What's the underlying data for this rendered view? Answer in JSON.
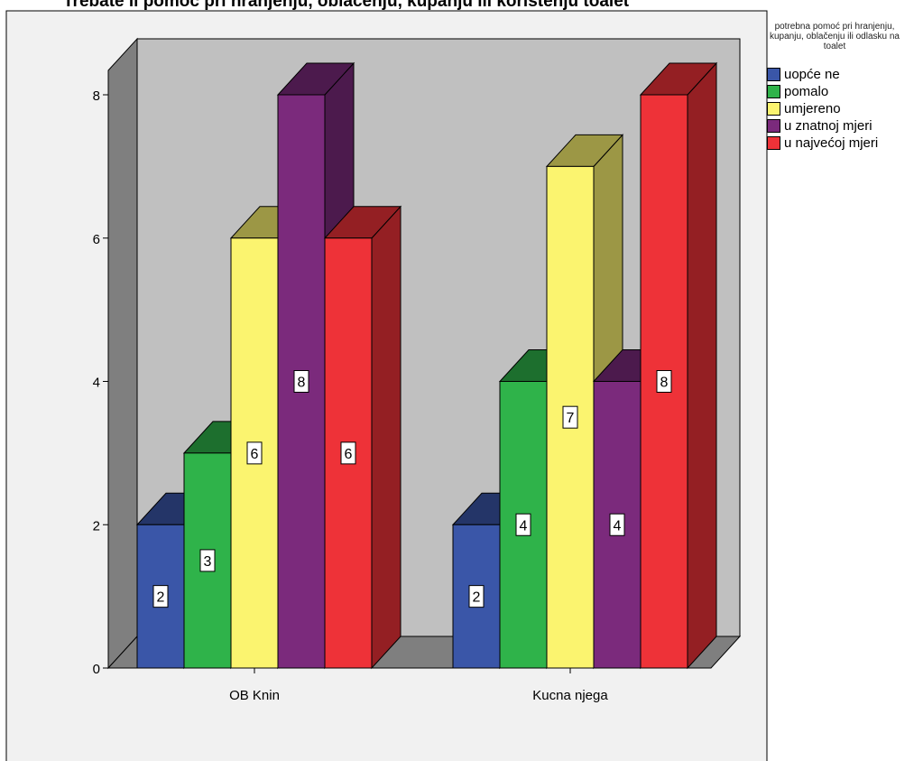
{
  "chart_data": {
    "type": "bar",
    "title": "Trebate li pomoć pri hranjenju, oblačenju, kupanju ili korištenju toalet",
    "xlabel": "",
    "ylabel": "",
    "categories": [
      "OB Knin",
      "Kucna njega"
    ],
    "ylim": [
      0,
      8
    ],
    "yticks": [
      0,
      2,
      4,
      6,
      8
    ],
    "legend_title": "potrebna pomoć pri hranjenju, kupanju, oblačenju ili odlasku na toalet",
    "legend_position": "right",
    "series": [
      {
        "name": "uopće ne",
        "color": "#3a56a8",
        "values": [
          2,
          2
        ]
      },
      {
        "name": "pomalo",
        "color": "#2fb34a",
        "values": [
          3,
          4
        ]
      },
      {
        "name": "umjereno",
        "color": "#fbf46f",
        "values": [
          6,
          7
        ]
      },
      {
        "name": "u znatnoj mjeri",
        "color": "#7b2a7c",
        "values": [
          8,
          4
        ]
      },
      {
        "name": "u najvećoj mjeri",
        "color": "#ee3238",
        "values": [
          6,
          8
        ]
      }
    ],
    "data_labels": true,
    "grid": false
  }
}
